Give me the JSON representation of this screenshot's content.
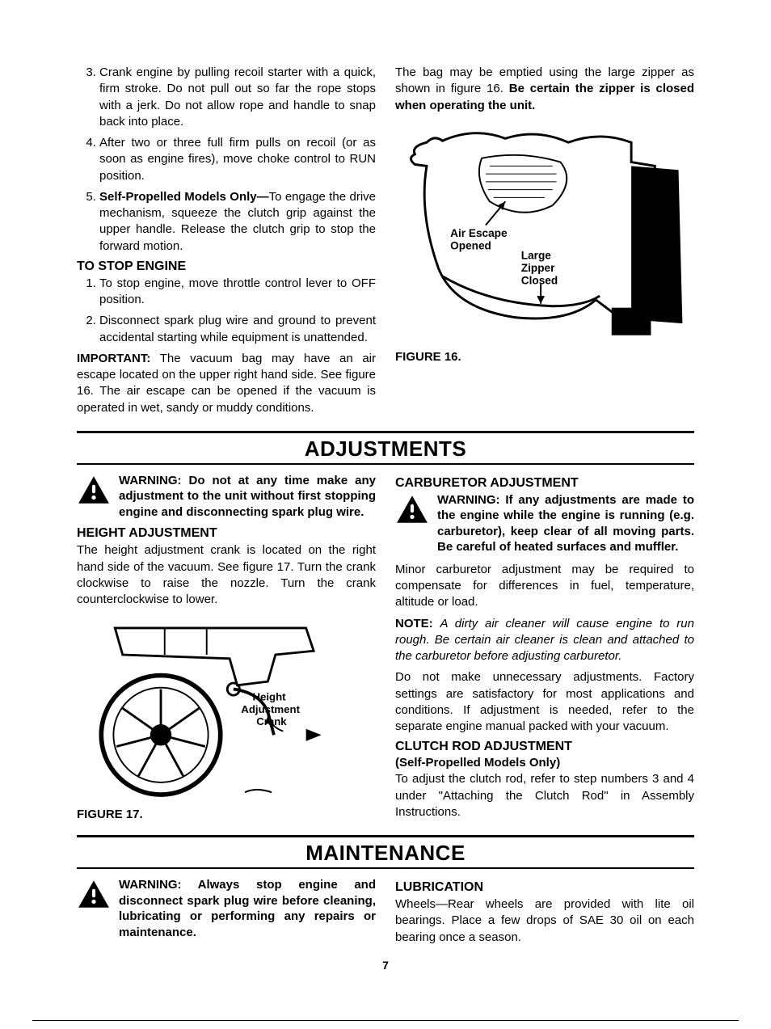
{
  "page_number": "7",
  "upper": {
    "left": {
      "ol_start": 3,
      "items": [
        "Crank engine by pulling recoil starter with a quick, firm stroke. Do not pull out so far the rope stops with a jerk. Do not allow rope and handle to snap back into place.",
        "After two or three full firm pulls on recoil (or as soon as engine fires), move choke control to RUN position.",
        "<b>Self-Propelled Models Only—</b>To engage the drive mechanism, squeeze the clutch grip against the upper handle. Release the clutch grip to stop the forward motion."
      ],
      "stop_head": "TO STOP ENGINE",
      "stop_items": [
        "To stop engine, move throttle control lever to OFF position.",
        "Disconnect spark plug wire and ground to prevent accidental starting while equipment is unattended."
      ],
      "important": "<b>IMPORTANT:</b> The vacuum bag may have an air escape located on the upper right hand side. See figure 16. The air escape can be opened if the vacuum is operated in wet, sandy or muddy conditions."
    },
    "right": {
      "bag_text": "The bag may be emptied using the large zipper as shown in figure 16. <b>Be certain the zipper is closed when operating the unit.</b>",
      "fig16": {
        "label": "FIGURE 16.",
        "callout_air1": "Air Escape",
        "callout_air2": "Opened",
        "callout_zip1": "Large",
        "callout_zip2": "Zipper",
        "callout_zip3": "Closed"
      }
    }
  },
  "adjustments": {
    "title": "ADJUSTMENTS",
    "left": {
      "warning": "WARNING: Do not at any time make any adjustment to the unit without first stopping engine and disconnecting spark plug wire.",
      "height_head": "HEIGHT ADJUSTMENT",
      "height_text": "The height adjustment crank is located on the right hand side of the vacuum. See figure 17. Turn the crank clockwise to raise the nozzle. Turn the crank counterclockwise to lower.",
      "fig17": {
        "label": "FIGURE 17.",
        "callout1": "Height",
        "callout2": "Adjustment",
        "callout3": "Crank"
      }
    },
    "right": {
      "carb_head": "CARBURETOR ADJUSTMENT",
      "carb_warning": "WARNING: If any adjustments are made to the engine while the engine is running (e.g. carburetor), keep clear of all moving parts. Be careful of heated surfaces and muffler.",
      "carb_p1": "Minor carburetor adjustment may be required to compensate for differences in fuel, temperature, altitude or load.",
      "carb_note": "<b>NOTE:</b> <i>A dirty air cleaner will cause engine to run rough. Be certain air cleaner is clean and attached to the carburetor before adjusting carburetor.</i>",
      "carb_p2": "Do not make unnecessary adjustments. Factory settings are satisfactory for most applications and conditions. If adjustment is needed, refer to the separate engine manual packed with your vacuum.",
      "clutch_head": "CLUTCH ROD ADJUSTMENT",
      "clutch_sub": "(Self-Propelled Models Only)",
      "clutch_text": "To adjust the clutch rod, refer to step numbers 3 and 4 under \"Attaching the Clutch Rod\" in Assembly Instructions."
    }
  },
  "maintenance": {
    "title": "MAINTENANCE",
    "left_warning": "WARNING: Always stop engine and disconnect spark plug wire before cleaning, lubricating or performing any repairs or maintenance.",
    "right_head": "LUBRICATION",
    "right_text": "Wheels—Rear wheels are provided with lite oil bearings. Place a few drops of SAE 30 oil on each bearing once a season."
  }
}
